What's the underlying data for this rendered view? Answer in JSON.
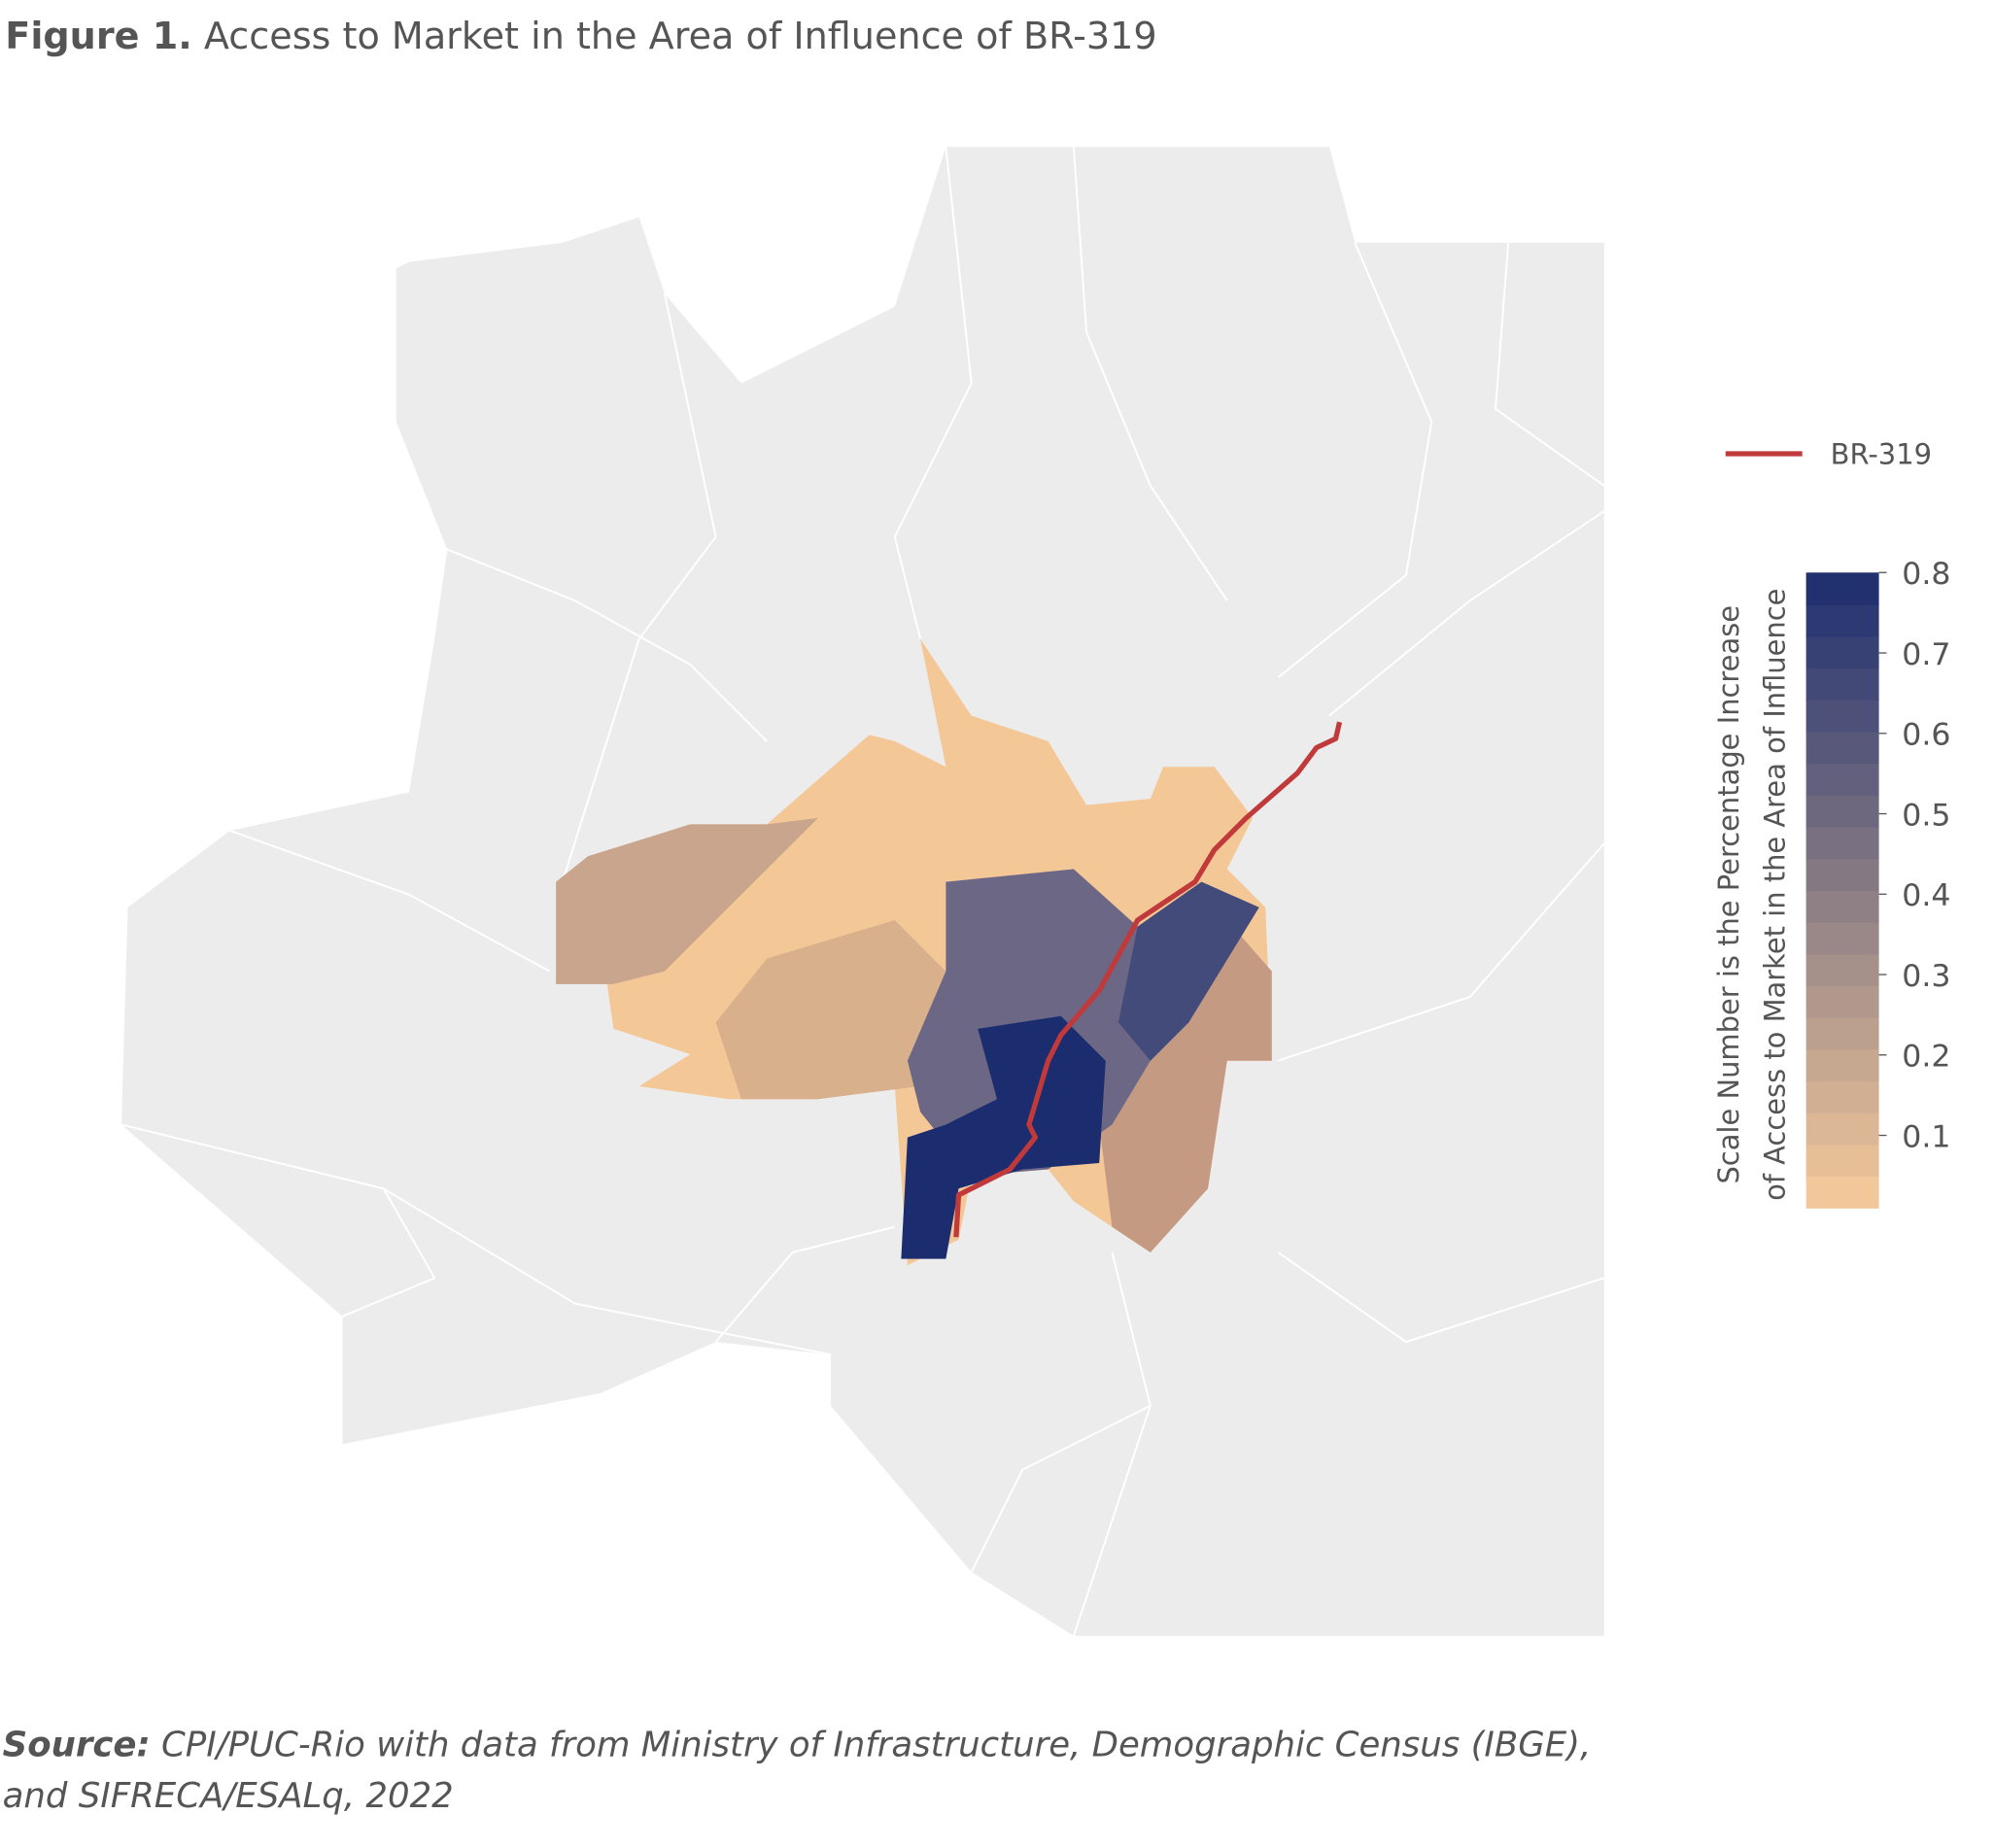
{
  "title": {
    "label": "Figure 1.",
    "text": "Access to Market in the Area of Influence of BR-319"
  },
  "legend": {
    "road": {
      "name": "BR-319",
      "color": "#c0393b"
    }
  },
  "colorbar": {
    "title": [
      "Scale Number is the Percentage Increase",
      "of Access to Market in the Area of Influence"
    ],
    "range": [
      0.01,
      0.8
    ],
    "ticks": [
      0.1,
      0.2,
      0.3,
      0.4,
      0.5,
      0.6,
      0.7,
      0.8
    ],
    "colors": [
      "#f8cb9a",
      "#1b2d6f"
    ],
    "steps": 20
  },
  "source": {
    "label": "Source:",
    "lines": [
      "CPI/PUC-Rio with data from Ministry of Infrastructure, Demographic Census (IBGE),",
      "and SIFRECA/ESALq, 2022"
    ]
  }
}
